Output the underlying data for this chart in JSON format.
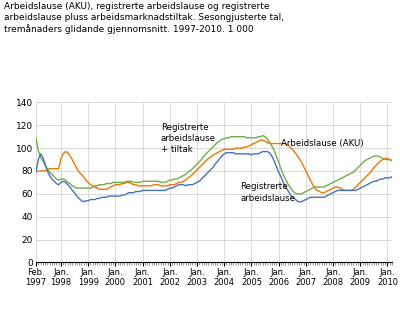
{
  "title": "Arbeidslause (AKU), registrerte arbeidslause og registrerte\narbeidslause pluss arbeidsmarknadstiltak. Sesongjusterte tal,\ntremånaders glidande gjennomsnitt. 1997-2010. 1 000",
  "xlim": [
    0,
    157
  ],
  "ylim": [
    0,
    140
  ],
  "yticks": [
    0,
    20,
    40,
    60,
    80,
    100,
    120,
    140
  ],
  "xtick_labels": [
    "Feb.\n1997",
    "Jan.\n1998",
    "Jan.\n1999",
    "Jan.\n2000",
    "Jan.\n2001",
    "Jan.\n2002",
    "Jan.\n2003",
    "Jan.\n2004",
    "Jan.\n2005",
    "Jan.\n2006",
    "Jan.\n2007",
    "Jan.\n2008",
    "Jan.\n2009",
    "Jan.\n2010"
  ],
  "xtick_positions": [
    0,
    11,
    23,
    35,
    47,
    59,
    71,
    83,
    95,
    107,
    119,
    131,
    143,
    155
  ],
  "color_aku": "#F07800",
  "color_reg": "#4472C4",
  "color_tiltak": "#70AD47",
  "label_aku": "Arbeidslause (AKU)",
  "label_reg": "Registrerte\narbeidslause",
  "label_tiltak": "Registrerte\narbeidslause\n+ tiltak",
  "aku": [
    79,
    80,
    80,
    80,
    80,
    81,
    82,
    82,
    82,
    82,
    82,
    91,
    95,
    97,
    96,
    93,
    90,
    86,
    82,
    79,
    77,
    75,
    72,
    70,
    68,
    67,
    66,
    65,
    64,
    64,
    64,
    64,
    65,
    66,
    67,
    68,
    68,
    68,
    69,
    69,
    70,
    70,
    69,
    68,
    68,
    67,
    67,
    67,
    67,
    67,
    67,
    67,
    68,
    68,
    68,
    67,
    67,
    67,
    67,
    68,
    68,
    68,
    69,
    70,
    70,
    71,
    72,
    74,
    75,
    77,
    79,
    81,
    83,
    85,
    87,
    89,
    91,
    92,
    94,
    95,
    96,
    97,
    98,
    99,
    99,
    99,
    99,
    99,
    100,
    100,
    100,
    100,
    101,
    101,
    102,
    103,
    104,
    105,
    106,
    107,
    107,
    106,
    105,
    104,
    104,
    104,
    104,
    104,
    104,
    104,
    104,
    103,
    101,
    99,
    97,
    94,
    91,
    88,
    84,
    80,
    76,
    72,
    68,
    65,
    63,
    62,
    61,
    61,
    62,
    63,
    64,
    65,
    66,
    66,
    65,
    64,
    63,
    63,
    63,
    63,
    64,
    66,
    68,
    70,
    72,
    74,
    76,
    78,
    80,
    83,
    85,
    87,
    89,
    90,
    91,
    91,
    90,
    89
  ],
  "reg": [
    79,
    90,
    95,
    92,
    86,
    80,
    76,
    73,
    71,
    69,
    68,
    70,
    71,
    70,
    68,
    66,
    63,
    61,
    58,
    56,
    54,
    53,
    54,
    54,
    55,
    55,
    55,
    56,
    56,
    57,
    57,
    57,
    58,
    58,
    58,
    58,
    58,
    58,
    59,
    59,
    60,
    61,
    61,
    61,
    62,
    62,
    62,
    63,
    63,
    63,
    63,
    63,
    63,
    63,
    63,
    63,
    63,
    63,
    64,
    65,
    65,
    66,
    67,
    68,
    68,
    68,
    67,
    68,
    68,
    68,
    69,
    70,
    71,
    73,
    75,
    77,
    79,
    81,
    83,
    86,
    88,
    91,
    93,
    95,
    96,
    96,
    96,
    96,
    95,
    95,
    95,
    95,
    95,
    95,
    95,
    94,
    95,
    95,
    95,
    96,
    97,
    97,
    97,
    96,
    93,
    89,
    84,
    79,
    75,
    70,
    66,
    63,
    60,
    57,
    56,
    54,
    53,
    53,
    54,
    55,
    56,
    57,
    57,
    57,
    57,
    57,
    57,
    57,
    58,
    59,
    60,
    61,
    62,
    63,
    63,
    63,
    63,
    63,
    63,
    63,
    63,
    63,
    64,
    65,
    66,
    67,
    68,
    69,
    70,
    71,
    71,
    72,
    73,
    73,
    74,
    74,
    74,
    75
  ],
  "tiltak": [
    109,
    98,
    92,
    89,
    85,
    82,
    79,
    77,
    75,
    73,
    72,
    73,
    73,
    72,
    70,
    69,
    67,
    66,
    65,
    65,
    65,
    65,
    65,
    65,
    65,
    66,
    67,
    67,
    68,
    68,
    68,
    69,
    69,
    69,
    70,
    70,
    70,
    70,
    70,
    70,
    71,
    71,
    71,
    70,
    70,
    70,
    70,
    71,
    71,
    71,
    71,
    71,
    71,
    71,
    71,
    70,
    70,
    70,
    71,
    72,
    72,
    73,
    73,
    74,
    75,
    76,
    77,
    79,
    80,
    82,
    84,
    86,
    88,
    90,
    93,
    95,
    97,
    99,
    101,
    103,
    105,
    106,
    108,
    108,
    109,
    109,
    110,
    110,
    110,
    110,
    110,
    110,
    110,
    109,
    109,
    109,
    109,
    109,
    110,
    110,
    111,
    110,
    108,
    105,
    102,
    98,
    93,
    88,
    82,
    77,
    73,
    69,
    66,
    63,
    61,
    60,
    60,
    60,
    61,
    62,
    63,
    64,
    65,
    66,
    66,
    66,
    66,
    66,
    67,
    68,
    69,
    70,
    71,
    72,
    73,
    74,
    75,
    76,
    77,
    78,
    79,
    81,
    83,
    85,
    87,
    89,
    90,
    91,
    92,
    93,
    93,
    93,
    92,
    91,
    90,
    90,
    90,
    89
  ],
  "ann_tiltak_x": 55,
  "ann_tiltak_y": 122,
  "ann_aku_x": 108,
  "ann_aku_y": 104,
  "ann_reg_x": 90,
  "ann_reg_y": 70
}
